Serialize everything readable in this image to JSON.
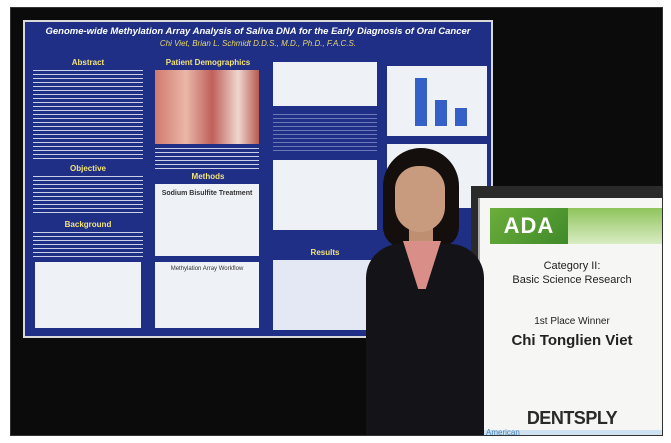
{
  "poster": {
    "title": "Genome-wide Methylation Array Analysis of Saliva DNA for the Early Diagnosis of Oral Cancer",
    "authors": "Chi Viet, Brian L. Schmidt D.D.S., M.D., Ph.D., F.A.C.S.",
    "sections": {
      "abstract": "Abstract",
      "patient_demographics": "Patient Demographics",
      "objective": "Objective",
      "methods": "Methods",
      "sodium_bisulfite": "Sodium Bisulfite Treatment",
      "background": "Background",
      "methylation_workflow": "Methylation Array Workflow",
      "results": "Results"
    }
  },
  "sign": {
    "logo": "ADA",
    "category": "Category II:",
    "subject": "Basic Science Research",
    "place": "1st Place Winner",
    "winner": "Chi Tonglien Viet",
    "sponsor": "DENTSPLY",
    "footer": "American"
  },
  "colors": {
    "poster_blue": "#1f2f86",
    "heading_yellow": "#f2e37a",
    "ada_green": "#5ba035"
  }
}
